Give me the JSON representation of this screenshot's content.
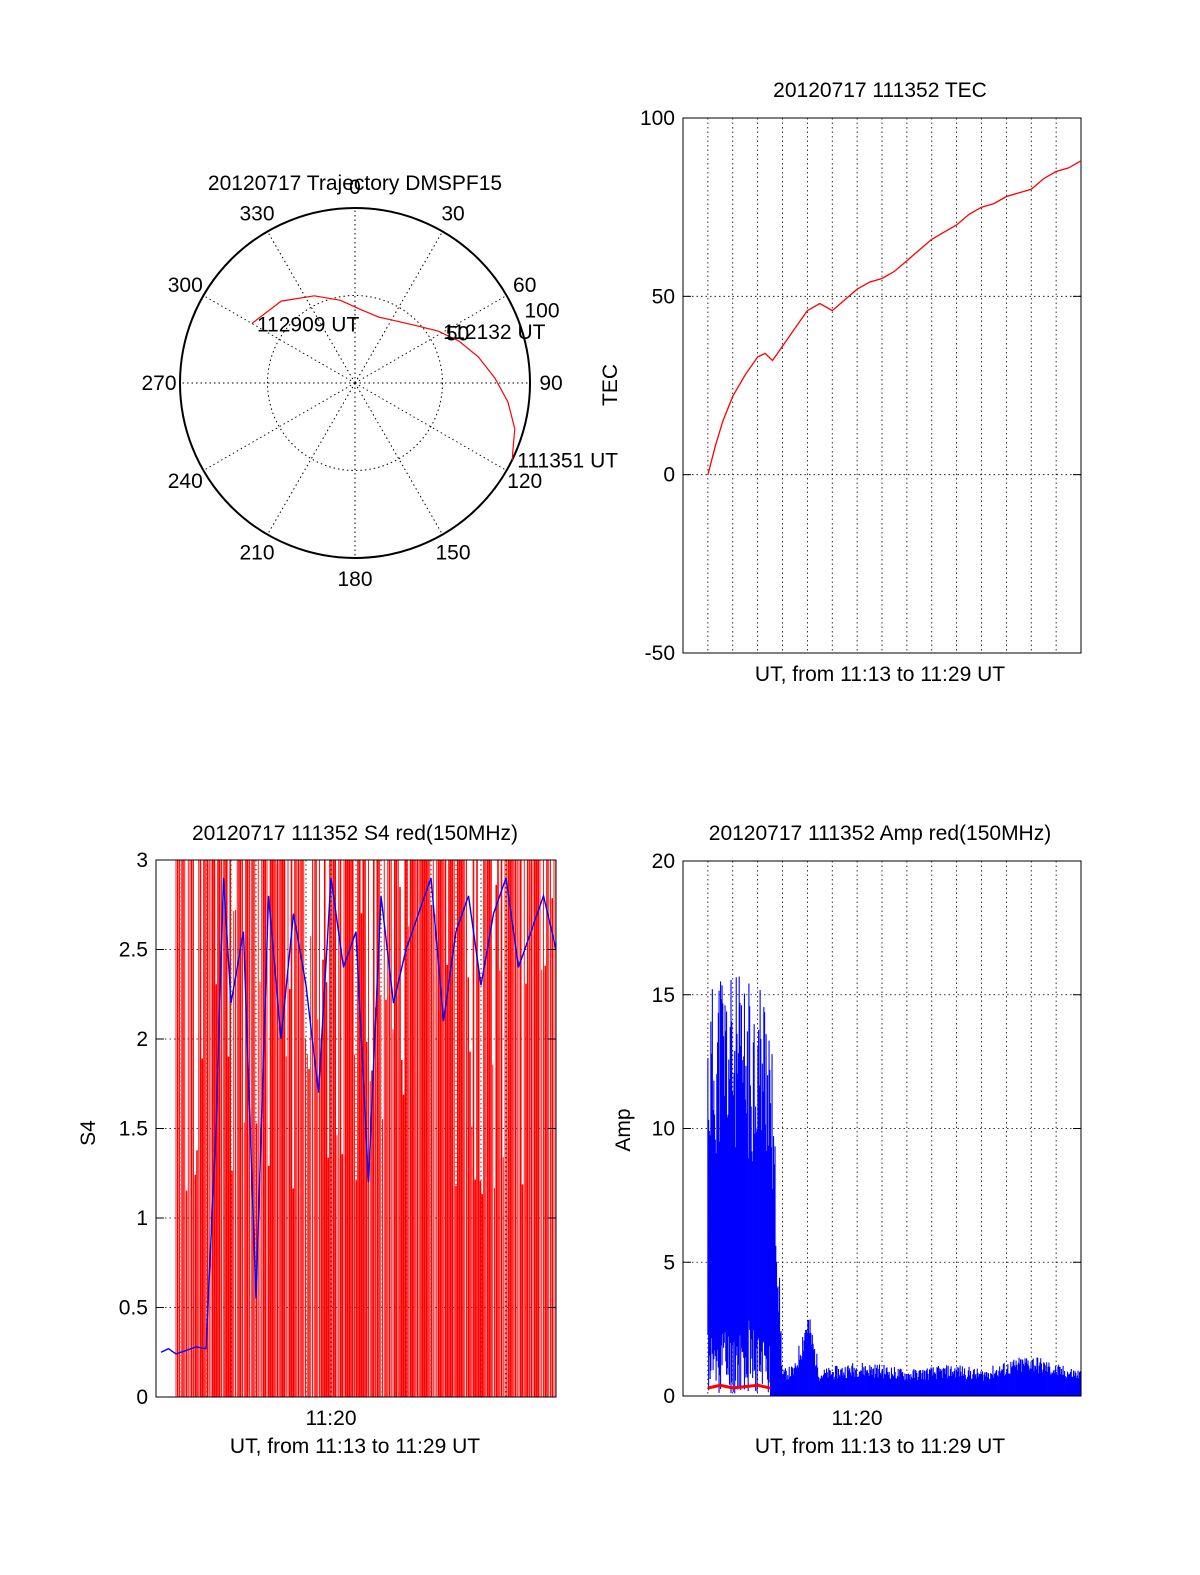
{
  "chart_data": [
    {
      "type": "polar",
      "title": "20120717 Trajectory DMSPF15",
      "azimuth_ticks": [
        "0",
        "30",
        "60",
        "90",
        "120",
        "150",
        "180",
        "210",
        "240",
        "270",
        "300",
        "330"
      ],
      "radial_ticks": [
        "50",
        "100"
      ],
      "rlim": [
        0,
        100
      ],
      "grid": true,
      "series": [
        {
          "color": "#ff0000",
          "points": [
            [
              300,
              68
            ],
            [
              318,
              63
            ],
            [
              335,
              55
            ],
            [
              350,
              48
            ],
            [
              5,
              42
            ],
            [
              20,
              40
            ],
            [
              35,
              43
            ],
            [
              47,
              48
            ],
            [
              58,
              56
            ],
            [
              68,
              64
            ],
            [
              78,
              72
            ],
            [
              88,
              80
            ],
            [
              97,
              88
            ],
            [
              106,
              95
            ],
            [
              113,
              98
            ],
            [
              116,
              100
            ]
          ]
        }
      ],
      "annotations": [
        {
          "text": "112909 UT",
          "az": 300,
          "r": 68
        },
        {
          "text": "112132 UT",
          "az": 58,
          "r": 56
        },
        {
          "text": "111351 UT",
          "az": 116,
          "r": 100
        }
      ]
    },
    {
      "type": "line",
      "title": "20120717 111352 TEC",
      "xlabel": "UT, from 11:13 to 11:29 UT",
      "ylabel": "TEC",
      "xlim": [
        0,
        16
      ],
      "ylim": [
        -50,
        100
      ],
      "yticks": [
        "-50",
        "0",
        "50",
        "100"
      ],
      "grid": true,
      "series": [
        {
          "color": "#ff0000",
          "x": [
            1,
            1.3,
            1.6,
            2,
            2.5,
            3,
            3.3,
            3.6,
            4,
            4.5,
            5,
            5.5,
            6,
            6.5,
            7,
            7.5,
            8,
            8.5,
            9,
            9.5,
            10,
            10.5,
            11,
            11.5,
            12,
            12.5,
            13,
            13.5,
            14,
            14.5,
            15,
            15.5,
            16
          ],
          "y": [
            0,
            8,
            15,
            22,
            28,
            33,
            34,
            32,
            36,
            41,
            46,
            48,
            46,
            49,
            52,
            54,
            55,
            57,
            60,
            63,
            66,
            68,
            70,
            73,
            75,
            76,
            78,
            79,
            80,
            83,
            85,
            86,
            88
          ]
        }
      ]
    },
    {
      "type": "line",
      "title": "20120717 111352 S4 red(150MHz)",
      "xlabel": "UT, from 11:13 to 11:29 UT",
      "ylabel": "S4",
      "xlim": [
        0,
        16
      ],
      "ylim": [
        0,
        3
      ],
      "yticks": [
        "0",
        "0.5",
        "1",
        "1.5",
        "2",
        "2.5",
        "3"
      ],
      "xticks": [
        "11:20"
      ],
      "grid": true,
      "series": [
        {
          "color": "#0000ff",
          "x": [
            0.2,
            0.5,
            0.8,
            1.2,
            1.6,
            2,
            2.4,
            2.7,
            3,
            3.5,
            4,
            4.5,
            5,
            5.5,
            6,
            6.5,
            7,
            7.5,
            8,
            8.5,
            9,
            9.5,
            10,
            10.5,
            11,
            11.5,
            12,
            12.5,
            13,
            13.5,
            14,
            14.5,
            15,
            15.5,
            16
          ],
          "y": [
            0.25,
            0.27,
            0.24,
            0.26,
            0.28,
            0.27,
            1.5,
            2.9,
            2.2,
            2.6,
            0.55,
            2.8,
            2.0,
            2.7,
            2.3,
            1.7,
            2.9,
            2.4,
            2.6,
            1.2,
            2.8,
            2.2,
            2.5,
            2.7,
            2.9,
            2.1,
            2.6,
            2.8,
            2.3,
            2.7,
            2.9,
            2.4,
            2.6,
            2.8,
            2.5
          ]
        },
        {
          "color": "#ff0000",
          "description_values": "dense vertical spikes between 0 and 3"
        }
      ]
    },
    {
      "type": "line",
      "title": "20120717 111352 Amp red(150MHz)",
      "xlabel": "UT, from 11:13 to 11:29 UT",
      "ylabel": "Amp",
      "xlim": [
        0,
        16
      ],
      "ylim": [
        0,
        20
      ],
      "yticks": [
        "0",
        "5",
        "10",
        "15",
        "20"
      ],
      "xticks": [
        "11:20"
      ],
      "grid": true,
      "series": [
        {
          "color": "#0000ff",
          "x": [
            1,
            1.5,
            2,
            2.5,
            3,
            3.5,
            4,
            4.5,
            5,
            5.5,
            6,
            7,
            8,
            9,
            10,
            11,
            12,
            13,
            14,
            15,
            16
          ],
          "y": [
            15,
            16.5,
            16,
            15.5,
            16,
            15.5,
            1.0,
            1.2,
            3.5,
            1.0,
            1.1,
            1.3,
            1.2,
            1.0,
            1.1,
            1.2,
            1.0,
            1.3,
            1.6,
            1.2,
            1.0
          ]
        },
        {
          "color": "#ff0000",
          "x": [
            1,
            1.5,
            2,
            2.5,
            3,
            3.5
          ],
          "y": [
            0.3,
            0.4,
            0.3,
            0.35,
            0.4,
            0.3
          ]
        }
      ]
    }
  ]
}
